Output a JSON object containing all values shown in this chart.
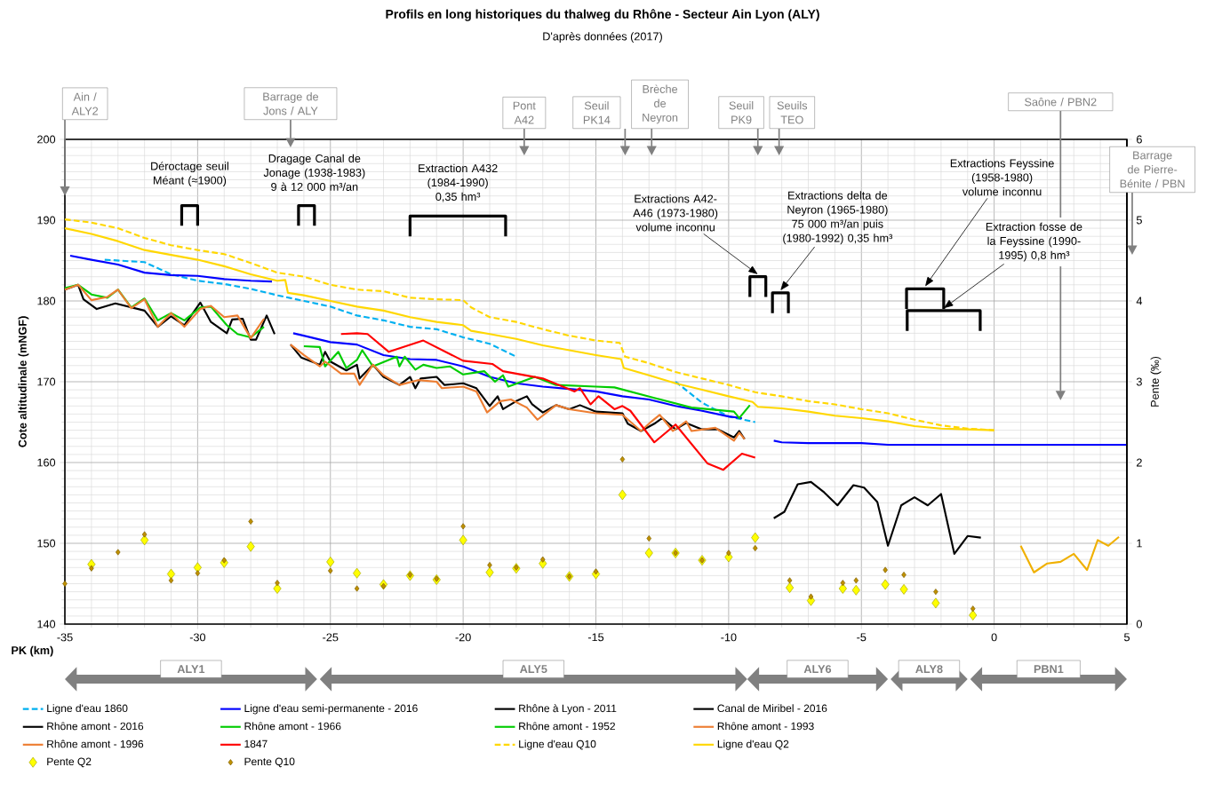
{
  "chart_data": {
    "type": "line",
    "title": "Profils en long historiques du thalweg du Rhône - Secteur Ain Lyon (ALY)",
    "subtitle": "D'après données (2017)",
    "xlabel": "PK (km)",
    "ylabel": "Cote altitudinale (mNGF)",
    "y2label": "Pente (‰)",
    "xlim": [
      -35,
      5
    ],
    "ylim": [
      140,
      200
    ],
    "y2lim": [
      0,
      6
    ],
    "xticks": [
      -35,
      -30,
      -25,
      -20,
      -15,
      -10,
      -5,
      0,
      5
    ],
    "yticks": [
      140,
      150,
      160,
      170,
      180,
      190,
      200
    ],
    "y2ticks": [
      0,
      1,
      2,
      3,
      4,
      5,
      6
    ],
    "grid": true,
    "legend": "bottom",
    "series": [
      {
        "name": "Ligne d'eau 1860",
        "color": "#00b0f0",
        "line_style": "dashed",
        "x": [
          -33.5,
          -32,
          -31,
          -30,
          -29,
          -28,
          -27,
          -26,
          -25,
          -24,
          -23,
          -22,
          -21,
          -20,
          -19,
          -18,
          -15,
          -12,
          -11,
          -10,
          -9
        ],
        "values": [
          185.1,
          184.8,
          183.3,
          182.5,
          182.1,
          181.5,
          180.7,
          180.0,
          179.3,
          178.2,
          177.6,
          176.8,
          176.5,
          175.5,
          174.7,
          173.1,
          null,
          170.0,
          167.4,
          165.7,
          165.0
        ]
      },
      {
        "name": "Ligne d'eau semi-permanente - 2016",
        "color": "#0000ff",
        "x": [
          -34.8,
          -34,
          -33,
          -32,
          -31,
          -30,
          -29,
          -28,
          -27.2,
          -26.8,
          -26.4,
          -26,
          -25,
          -24,
          -23,
          -22,
          -21,
          -20,
          -19,
          -18,
          -17,
          -16,
          -15,
          -14,
          -13,
          -12,
          -11,
          -10,
          -9.5,
          -9,
          -8.3,
          -8,
          -7,
          -5,
          -4,
          0,
          4,
          5
        ],
        "values": [
          185.6,
          185.1,
          184.5,
          183.5,
          183.2,
          183.1,
          182.7,
          182.5,
          182.4,
          null,
          176.0,
          175.7,
          174.9,
          174.6,
          173.3,
          172.8,
          172.7,
          171.9,
          170.6,
          169.8,
          169.4,
          169.1,
          168.8,
          168.2,
          167.8,
          167.0,
          166.4,
          165.7,
          165.5,
          null,
          162.7,
          162.5,
          162.4,
          162.4,
          162.2,
          162.2,
          162.2,
          162.2
        ]
      },
      {
        "name": "Rhône à Lyon - 2011",
        "color": "#000000",
        "x": [
          -8.3,
          -7.9,
          -7.4,
          -6.9,
          -6.4,
          -5.9,
          -5.3,
          -4.9,
          -4.4,
          -4.0,
          -3.5,
          -3.0,
          -2.5,
          -2.0,
          -1.5,
          -1.0,
          -0.5
        ],
        "values": [
          153.1,
          153.9,
          157.3,
          157.6,
          156.3,
          154.7,
          157.2,
          156.9,
          155.1,
          149.7,
          154.7,
          155.7,
          154.7,
          156.1,
          148.7,
          150.9,
          150.7
        ]
      },
      {
        "name": "Canal de Miribel - 2016",
        "color": "#000000",
        "x": [
          -35,
          -34.5,
          -34.3,
          -33.8,
          -33.1,
          -32,
          -31.5,
          -31,
          -30.5,
          -29.9,
          -29.5,
          -28.9,
          -28.7,
          -28.3,
          -28,
          -27.8,
          -27.4,
          -27.1
        ],
        "values": [
          181.4,
          182.0,
          180.2,
          179.0,
          179.7,
          178.8,
          176.8,
          178.1,
          177.0,
          179.8,
          177.4,
          176.0,
          177.7,
          177.8,
          175.2,
          175.2,
          178.2,
          175.9
        ]
      },
      {
        "name": "Rhône amont - 2016",
        "color": "#000000",
        "x": [
          -26.5,
          -26.1,
          -25.4,
          -25.2,
          -25.0,
          -24.4,
          -24.0,
          -23.9,
          -23.4,
          -23.0,
          -22.4,
          -22.0,
          -21.8,
          -21.6,
          -21.0,
          -20.7,
          -20.0,
          -19.5,
          -19.0,
          -18.7,
          -18.5,
          -18.0,
          -17.6,
          -17.4,
          -17.0,
          -16.5,
          -16.0,
          -15.6,
          -15.0,
          -14.5,
          -14.0,
          -13.8,
          -13.3,
          -12.8,
          -12.5,
          -12.0,
          -11.6,
          -11.0,
          -10.4,
          -9.8,
          -9.6,
          -9.4
        ],
        "values": [
          174.6,
          173.0,
          172.1,
          173.7,
          172.5,
          171.4,
          172.1,
          170.4,
          172.1,
          170.6,
          169.6,
          170.6,
          169.2,
          170.4,
          170.6,
          169.6,
          169.8,
          169.2,
          167.0,
          168.2,
          166.6,
          167.6,
          168.2,
          167.2,
          166.2,
          167.1,
          166.6,
          167.1,
          166.3,
          166.2,
          166.1,
          164.8,
          163.9,
          164.8,
          165.5,
          164.1,
          164.9,
          164.1,
          164.1,
          163.1,
          163.9,
          162.9
        ]
      },
      {
        "name": "Rhône amont - 1966",
        "color": "#00cc00",
        "x": [
          -26.0,
          -25.4,
          -25.2,
          -24.7,
          -24.4,
          -24.0,
          -23.8,
          -23.4,
          -22.5,
          -22.4,
          -22.2,
          -21.8,
          -21.5,
          -21.0,
          -20.5,
          -20.0,
          -19.2,
          -18.8,
          -18.5,
          -18.3,
          -17.3,
          -16.5,
          -15.0,
          -14.3,
          -12.8,
          -11.4,
          -9.8,
          -9.6,
          -9.2
        ],
        "values": [
          174.4,
          174.3,
          171.9,
          173.7,
          171.7,
          172.7,
          173.9,
          171.9,
          173.1,
          171.9,
          173.1,
          171.5,
          172.1,
          171.7,
          171.9,
          170.9,
          171.3,
          170.0,
          170.8,
          169.4,
          170.6,
          169.6,
          169.4,
          169.3,
          168.0,
          166.8,
          166.3,
          165.5,
          167.1
        ]
      },
      {
        "name": "Rhône amont - 1952",
        "color": "#00cc00",
        "x": [
          -35,
          -34.5,
          -34.0,
          -33.4,
          -33.0,
          -32.5,
          -32,
          -31.5,
          -31,
          -30.5,
          -29.9,
          -29.5,
          -28.9,
          -28.5,
          -28.0,
          -27.5
        ],
        "values": [
          181.6,
          182.0,
          180.8,
          180.4,
          181.4,
          179.2,
          180.3,
          177.6,
          178.5,
          177.6,
          179.2,
          179.3,
          177.0,
          175.9,
          175.5,
          176.8
        ]
      },
      {
        "name": "Rhône amont - 1993",
        "color": "#ed7d31",
        "x": [
          -26.5,
          -26.0,
          -25.4,
          -25.2,
          -24.6,
          -24.1,
          -23.9,
          -23.4,
          -23.0,
          -22.4,
          -21.7,
          -21.0,
          -20.8,
          -20.0,
          -19.5,
          -19.1,
          -18.6,
          -18.2,
          -17.6,
          -17.2,
          -16.5,
          -16.0,
          -15.0,
          -14.0,
          -13.3,
          -12.9,
          -12.6,
          -12.1,
          -11.6,
          -11.4,
          -10.5,
          -9.8,
          -9.6,
          -9.4
        ],
        "values": [
          174.6,
          173.3,
          171.9,
          172.5,
          171.0,
          171.0,
          169.6,
          172.1,
          170.8,
          169.6,
          170.2,
          170.0,
          169.2,
          169.4,
          168.8,
          166.2,
          167.6,
          167.8,
          166.8,
          165.3,
          167.1,
          166.6,
          166.1,
          165.9,
          163.9,
          165.1,
          165.9,
          163.9,
          165.1,
          163.9,
          164.3,
          162.7,
          163.7,
          162.9
        ]
      },
      {
        "name": "Rhône amont - 1996",
        "color": "#ed7d31",
        "x": [
          -35,
          -34.5,
          -34.0,
          -33.4,
          -33.0,
          -32.5,
          -32,
          -31.5,
          -31,
          -30.5,
          -29.9,
          -29.5,
          -29.0,
          -28.5,
          -28.0,
          -27.5
        ],
        "values": [
          181.4,
          182.0,
          180.1,
          180.5,
          181.4,
          179.1,
          180.2,
          176.8,
          178.5,
          176.8,
          179.0,
          179.4,
          178.0,
          178.2,
          175.4,
          177.8
        ]
      },
      {
        "name": "1847",
        "color": "#ff0000",
        "x": [
          -24.6,
          -24.0,
          -23.6,
          -22.8,
          -21.5,
          -20.0,
          -18.9,
          -18.5,
          -17.0,
          -15.8,
          -15.6,
          -15.2,
          -14.9,
          -14.3,
          -14.0,
          -13.7,
          -12.8,
          -12.0,
          -10.8,
          -10.2,
          -9.5,
          -9.0
        ],
        "values": [
          175.9,
          176.0,
          175.9,
          173.7,
          175.1,
          172.6,
          172.2,
          171.3,
          170.4,
          168.8,
          169.2,
          167.2,
          168.2,
          166.6,
          167.0,
          166.4,
          162.5,
          164.7,
          159.9,
          159.1,
          161.1,
          160.6
        ]
      },
      {
        "name": "Ligne d'eau Q10",
        "color": "#ffd700",
        "line_style": "dashed",
        "x": [
          -35,
          -34,
          -33,
          -32,
          -31,
          -30,
          -29,
          -28,
          -27,
          -26,
          -25,
          -24,
          -23,
          -22,
          -21,
          -20,
          -19.7,
          -19,
          -18,
          -17,
          -16,
          -15,
          -14.1,
          -13.9,
          -13,
          -12,
          -11,
          -10,
          -9,
          -8,
          -7,
          -6,
          -5,
          -4,
          -3,
          -2,
          -1,
          0
        ],
        "values": [
          190.1,
          189.7,
          189.0,
          187.8,
          186.9,
          186.3,
          185.8,
          184.7,
          183.5,
          183.0,
          182.0,
          181.4,
          181.2,
          180.4,
          180.2,
          180.1,
          179.2,
          178.0,
          177.4,
          176.5,
          175.7,
          175.1,
          174.8,
          173.1,
          172.3,
          171.2,
          170.4,
          169.6,
          168.7,
          168.2,
          167.6,
          167.2,
          166.6,
          166.1,
          165.3,
          164.6,
          164.2,
          164.0
        ]
      },
      {
        "name": "Ligne d'eau Q2",
        "color": "#ffd700",
        "x": [
          -35,
          -34,
          -33,
          -32,
          -31,
          -30,
          -29,
          -28,
          -27,
          -26.7,
          -26.6,
          -26,
          -25,
          -24,
          -23,
          -22,
          -21,
          -20,
          -19.7,
          -19,
          -18,
          -17,
          -16,
          -15,
          -14.05,
          -13.95,
          -13,
          -12,
          -11,
          -10,
          -9.1,
          -8.9,
          -8,
          -7,
          -6,
          -5,
          -4,
          -3,
          -2,
          -1,
          0
        ],
        "values": [
          189.0,
          188.3,
          187.4,
          186.3,
          185.7,
          185.1,
          184.3,
          183.3,
          182.5,
          182.6,
          181.0,
          180.7,
          180.0,
          179.3,
          178.8,
          178.0,
          177.4,
          177.0,
          176.3,
          175.9,
          175.3,
          174.5,
          173.9,
          173.3,
          172.8,
          171.7,
          170.8,
          169.8,
          169.0,
          168.2,
          167.5,
          166.9,
          166.7,
          166.3,
          165.8,
          165.5,
          165.1,
          164.5,
          164.2,
          164.1,
          164.0
        ]
      },
      {
        "name": "Pente Q2",
        "type": "scatter",
        "axis": "y2",
        "marker": "diamond",
        "color": "#ffff00",
        "x": [
          -34,
          -32,
          -31,
          -30,
          -29,
          -28,
          -27,
          -25,
          -24,
          -23,
          -22,
          -21,
          -20,
          -19,
          -18,
          -17,
          -16,
          -15,
          -14,
          -13,
          -12,
          -11,
          -10,
          -9,
          -7.7,
          -6.9,
          -5.7,
          -5.2,
          -4.1,
          -3.4,
          -2.2,
          -0.8
        ],
        "values": [
          0.74,
          1.04,
          0.62,
          0.7,
          0.76,
          0.96,
          0.44,
          0.77,
          0.63,
          0.49,
          0.6,
          0.55,
          1.04,
          0.64,
          0.69,
          0.75,
          0.59,
          0.62,
          1.6,
          0.88,
          0.88,
          0.79,
          0.83,
          1.07,
          0.45,
          0.29,
          0.44,
          0.42,
          0.49,
          0.43,
          0.26,
          0.11
        ]
      },
      {
        "name": "Pente Q10",
        "type": "scatter",
        "axis": "y2",
        "marker": "diamond",
        "color": "#bf9000",
        "x": [
          -35,
          -34,
          -33,
          -32,
          -31,
          -30,
          -29,
          -28,
          -27,
          -25,
          -24,
          -23,
          -22,
          -21,
          -20,
          -19,
          -18,
          -17,
          -16,
          -15,
          -14,
          -13,
          -12,
          -11,
          -10,
          -9,
          -7.7,
          -6.9,
          -5.7,
          -5.2,
          -4.1,
          -3.4,
          -2.2,
          -0.8
        ],
        "values": [
          0.5,
          0.69,
          0.89,
          1.11,
          0.54,
          0.63,
          0.79,
          1.27,
          0.51,
          0.66,
          0.44,
          0.47,
          0.61,
          0.56,
          1.21,
          0.73,
          0.7,
          0.8,
          0.59,
          0.65,
          2.04,
          1.06,
          0.88,
          0.79,
          0.88,
          0.94,
          0.54,
          0.34,
          0.51,
          0.54,
          0.67,
          0.61,
          0.4,
          0.19
        ]
      },
      {
        "color": "#f0b000",
        "x": [
          1.0,
          1.5,
          2.0,
          2.5,
          3.0,
          3.5,
          3.9,
          4.3,
          4.7
        ],
        "values": [
          149.7,
          146.4,
          147.5,
          147.7,
          148.7,
          146.7,
          150.4,
          149.7,
          150.8
        ]
      }
    ],
    "annotations": [
      "Ain / ALY2",
      "Barrage de Jons / ALY",
      "Pont A42",
      "Seuil PK14",
      "Brèche de Neyron",
      "Seuil PK9",
      "Seuils TEO",
      "Saône / PBN2",
      "Barrage de Pierre-Bénite / PBN",
      "Déroctage seuil Méant (≈1900)",
      "Dragage Canal de Jonage (1938-1983) 9 à 12 000 m³/an",
      "Extraction A432 (1984-1990) 0,35 hm³",
      "Extractions A42-A46 (1973-1980) volume inconnu",
      "Extractions delta de Neyron (1965-1980) 75 000 m³/an puis (1980-1992) 0,35 hm³",
      "Extractions Feyssine (1958-1980) volume inconnu",
      "Extraction fosse de la Feyssine (1990-1995) 0,8 hm³",
      "ALY1",
      "ALY5",
      "ALY6",
      "ALY8",
      "PBN1"
    ]
  }
}
